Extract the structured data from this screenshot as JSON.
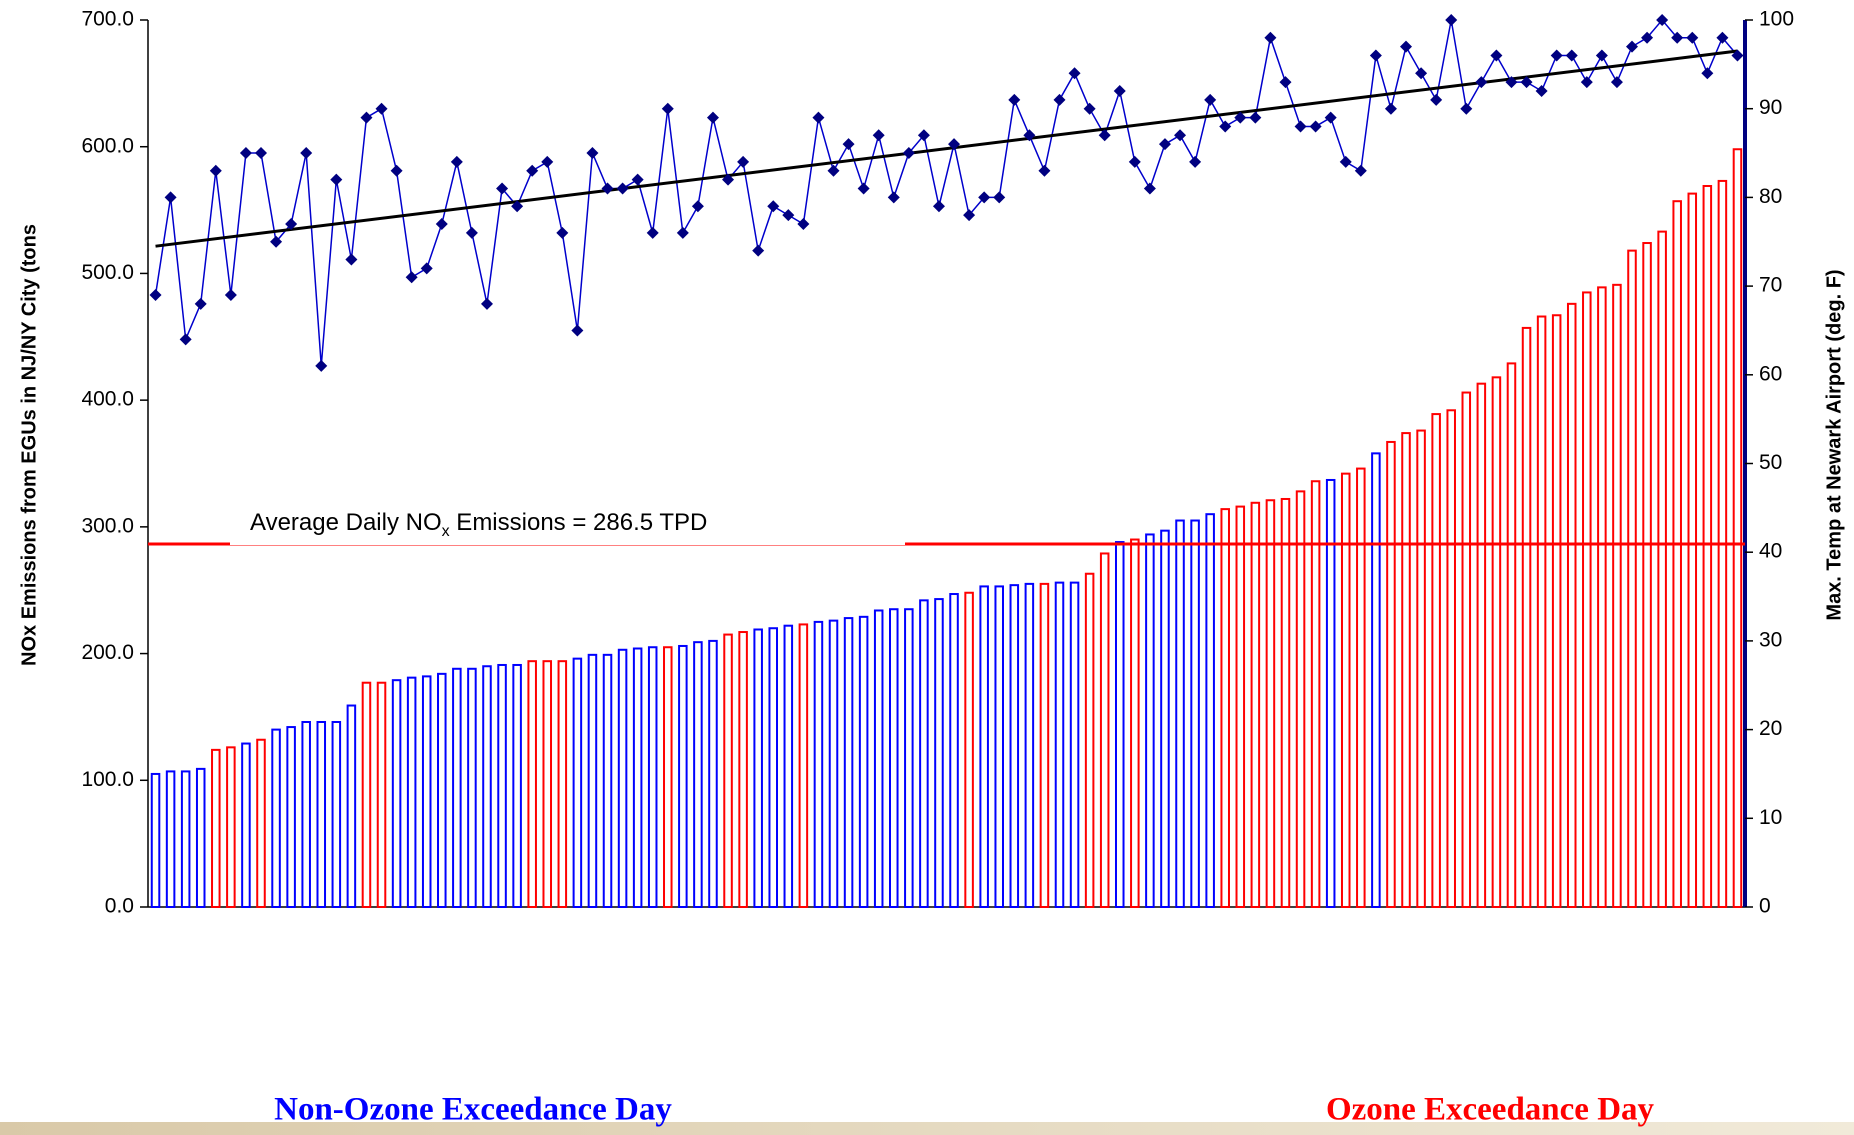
{
  "chart_data": {
    "type": "bar",
    "y_label": "NOx Emissions from EGUs in NJ/NY City (tons",
    "y2_label": "Max. Temp at Newark Airport (deg. F)",
    "ylim": [
      0,
      700
    ],
    "yticks": [
      {
        "value": 0,
        "label": "0.0"
      },
      {
        "value": 100,
        "label": "100.0"
      },
      {
        "value": 200,
        "label": "200.0"
      },
      {
        "value": 300,
        "label": "300.0"
      },
      {
        "value": 400,
        "label": "400.0"
      },
      {
        "value": 500,
        "label": "500.0"
      },
      {
        "value": 600,
        "label": "600.0"
      },
      {
        "value": 700,
        "label": "700.0"
      }
    ],
    "y2lim": [
      0,
      100
    ],
    "y2ticks": [
      0,
      10,
      20,
      30,
      40,
      50,
      60,
      70,
      80,
      90,
      100
    ],
    "average_line": 286.5,
    "average_line_color": "#ff0000",
    "annotation": [
      "Average Daily NO",
      "x",
      " Emissions = 286.5 TPD"
    ],
    "trendline": [
      74.5,
      96.5
    ],
    "trendline_color": "#000000",
    "series": [
      {
        "name": "Non-Ozone Exceedance Day",
        "color": "#0000ff",
        "values": [
          105,
          107,
          107,
          109,
          null,
          null,
          129,
          null,
          140,
          142,
          146,
          146,
          146,
          159,
          null,
          null,
          179,
          181,
          182,
          184,
          188,
          188,
          190,
          191,
          191,
          null,
          null,
          null,
          196,
          199,
          199,
          203,
          204,
          205,
          null,
          206,
          209,
          210,
          null,
          null,
          219,
          220,
          222,
          null,
          225,
          226,
          228,
          229,
          234,
          235,
          235,
          242,
          243,
          247,
          null,
          253,
          253,
          254,
          255,
          null,
          256,
          256,
          null,
          null,
          288,
          null,
          294,
          297,
          305,
          305,
          310,
          null,
          null,
          null,
          null,
          null,
          null,
          null,
          337,
          null,
          null,
          358,
          null,
          null,
          null,
          null,
          null,
          null,
          null,
          null,
          null,
          null,
          null,
          null,
          null,
          null,
          null,
          null,
          null,
          null,
          null,
          null,
          null,
          null,
          null,
          null
        ]
      },
      {
        "name": "Ozone Exceedance Day",
        "color": "#ff0000",
        "values": [
          null,
          null,
          null,
          null,
          124,
          126,
          null,
          132,
          null,
          null,
          null,
          null,
          null,
          null,
          177,
          177,
          null,
          null,
          null,
          null,
          null,
          null,
          null,
          null,
          null,
          194,
          194,
          194,
          null,
          null,
          null,
          null,
          null,
          null,
          205,
          null,
          null,
          null,
          215,
          217,
          null,
          null,
          null,
          223,
          null,
          null,
          null,
          null,
          null,
          null,
          null,
          null,
          null,
          null,
          248,
          null,
          null,
          null,
          null,
          255,
          null,
          null,
          263,
          279,
          null,
          290,
          null,
          null,
          null,
          null,
          null,
          314,
          316,
          319,
          321,
          322,
          328,
          336,
          null,
          342,
          346,
          null,
          367,
          374,
          376,
          389,
          392,
          406,
          413,
          418,
          429,
          457,
          466,
          467,
          476,
          485,
          489,
          491,
          518,
          524,
          533,
          557,
          563,
          569,
          573,
          598
        ]
      },
      {
        "type": "line",
        "axis": "y2",
        "color": "#0000cc",
        "marker_color": "#000080",
        "values": [
          69,
          80,
          64,
          68,
          83,
          69,
          85,
          85,
          75,
          77,
          85,
          61,
          82,
          73,
          89,
          90,
          83,
          71,
          72,
          77,
          84,
          76,
          68,
          81,
          79,
          83,
          84,
          76,
          65,
          85,
          81,
          81,
          82,
          76,
          90,
          76,
          79,
          89,
          82,
          84,
          74,
          79,
          78,
          77,
          89,
          83,
          86,
          81,
          87,
          80,
          85,
          87,
          79,
          86,
          78,
          80,
          80,
          91,
          87,
          83,
          91,
          94,
          90,
          87,
          92,
          84,
          81,
          86,
          87,
          84,
          91,
          88,
          89,
          89,
          98,
          93,
          88,
          88,
          89,
          84,
          83,
          96,
          90,
          97,
          94,
          91,
          100,
          90,
          93,
          96,
          93,
          93,
          92,
          96,
          96,
          93,
          96,
          93,
          97,
          98,
          100,
          98,
          98,
          94,
          98,
          96
        ]
      }
    ]
  }
}
